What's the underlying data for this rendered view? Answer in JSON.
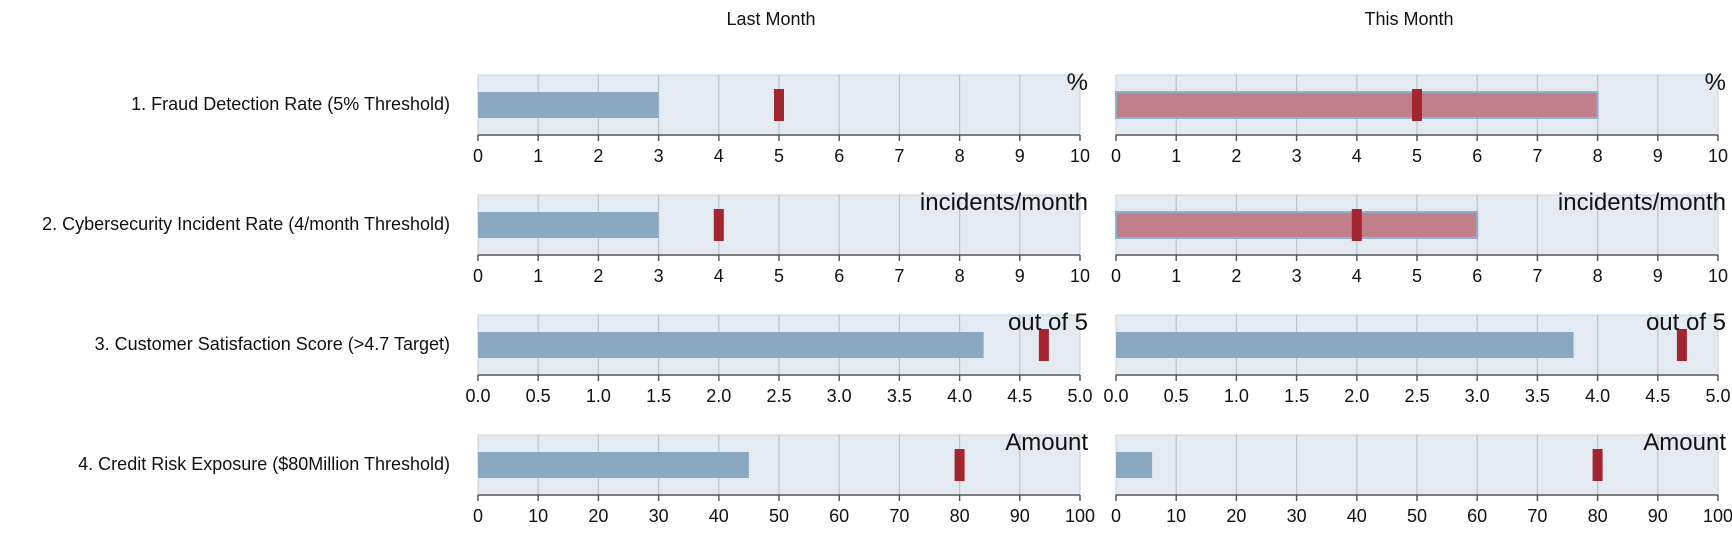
{
  "chart_data": {
    "type": "bullet",
    "columns": [
      "Last Month",
      "This Month"
    ],
    "colors": {
      "panel_bg": "#e3eaf1",
      "bar_normal": "#8aa9c1",
      "bar_alert": "#c07f8a",
      "bar_alert_edge": "#8fb0cf",
      "marker": "#a3252f",
      "grid": "#bcc3cb",
      "axis": "#555555"
    },
    "rows": [
      {
        "label": "1. Fraud Detection Rate (5% Threshold)",
        "unit": "%",
        "xlim": [
          0,
          10
        ],
        "ticks": [
          "0",
          "1",
          "2",
          "3",
          "4",
          "5",
          "6",
          "7",
          "8",
          "9",
          "10"
        ],
        "threshold": 5,
        "values": [
          3,
          8
        ],
        "alert": [
          false,
          true
        ]
      },
      {
        "label": "2. Cybersecurity Incident Rate (4/month Threshold)",
        "unit": "incidents/month",
        "xlim": [
          0,
          10
        ],
        "ticks": [
          "0",
          "1",
          "2",
          "3",
          "4",
          "5",
          "6",
          "7",
          "8",
          "9",
          "10"
        ],
        "threshold": 4,
        "values": [
          3,
          6
        ],
        "alert": [
          false,
          true
        ]
      },
      {
        "label": "3. Customer Satisfaction Score (>4.7 Target)",
        "unit": "out of 5",
        "xlim": [
          0,
          5
        ],
        "ticks": [
          "0.0",
          "0.5",
          "1.0",
          "1.5",
          "2.0",
          "2.5",
          "3.0",
          "3.5",
          "4.0",
          "4.5",
          "5.0"
        ],
        "threshold": 4.7,
        "values": [
          4.2,
          3.8
        ],
        "alert": [
          false,
          false
        ]
      },
      {
        "label": "4. Credit Risk Exposure ($80Million Threshold)",
        "unit": "Amount",
        "xlim": [
          0,
          100
        ],
        "ticks": [
          "0",
          "10",
          "20",
          "30",
          "40",
          "50",
          "60",
          "70",
          "80",
          "90",
          "100"
        ],
        "threshold": 80,
        "values": [
          45,
          6
        ],
        "alert": [
          false,
          false
        ]
      }
    ]
  }
}
